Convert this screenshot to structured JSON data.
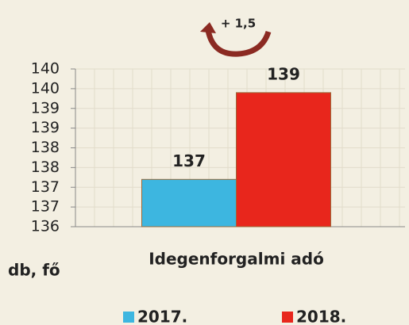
{
  "chart_data": {
    "type": "bar",
    "annotation": "+ 1,5",
    "ylabel": "db, fő",
    "categories": [
      "Idegenforgalmi adó"
    ],
    "series": [
      {
        "name": "2017.",
        "color": "#3db6e0",
        "values": [
          137.2
        ],
        "value_labels": [
          "137"
        ]
      },
      {
        "name": "2018.",
        "color": "#e8261c",
        "values": [
          139.4
        ],
        "value_labels": [
          "139"
        ]
      }
    ],
    "ylim": [
      136,
      140
    ],
    "yticks": [
      136,
      {
        "value": 136.5,
        "label": "137"
      },
      137,
      {
        "value": 137.5,
        "label": "138"
      },
      138,
      {
        "value": 138.5,
        "label": "139"
      },
      139,
      {
        "value": 139.5,
        "label": "140"
      },
      140
    ],
    "grid": true
  }
}
